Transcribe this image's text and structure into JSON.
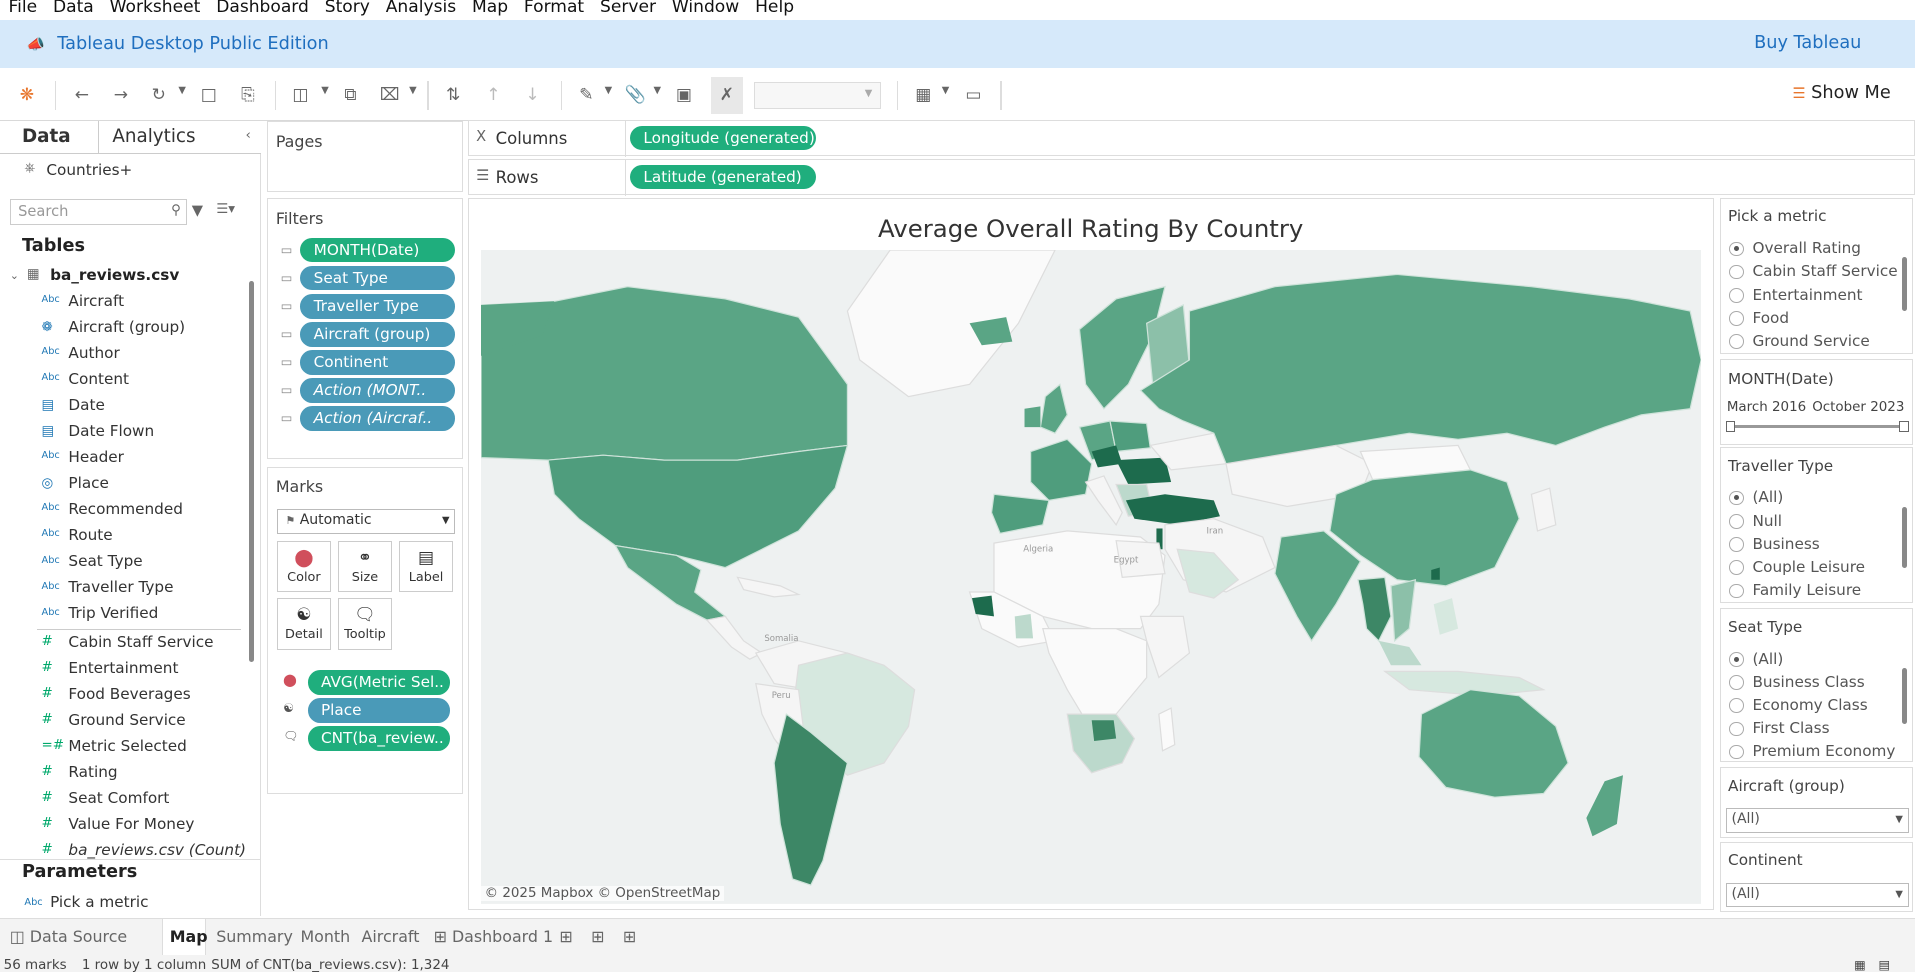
{
  "menu": [
    "File",
    "Data",
    "Worksheet",
    "Dashboard",
    "Story",
    "Analysis",
    "Map",
    "Format",
    "Server",
    "Window",
    "Help"
  ],
  "banner": {
    "title": "Tableau Desktop Public Edition",
    "buy": "Buy Tableau"
  },
  "toolbar": {
    "show_me": "Show Me"
  },
  "left_tabs": {
    "data": "Data",
    "analytics": "Analytics"
  },
  "data_source": "Countries+",
  "search_placeholder": "Search",
  "tables_heading": "Tables",
  "table_name": "ba_reviews.csv",
  "dimensions": [
    {
      "type": "Abc",
      "name": "Aircraft"
    },
    {
      "type": "group",
      "name": "Aircraft (group)"
    },
    {
      "type": "Abc",
      "name": "Author"
    },
    {
      "type": "Abc",
      "name": "Content"
    },
    {
      "type": "date",
      "name": "Date"
    },
    {
      "type": "date",
      "name": "Date Flown"
    },
    {
      "type": "Abc",
      "name": "Header"
    },
    {
      "type": "geo",
      "name": "Place"
    },
    {
      "type": "Abc",
      "name": "Recommended"
    },
    {
      "type": "Abc",
      "name": "Route"
    },
    {
      "type": "Abc",
      "name": "Seat Type"
    },
    {
      "type": "Abc",
      "name": "Traveller Type"
    },
    {
      "type": "Abc",
      "name": "Trip Verified"
    }
  ],
  "measures": [
    {
      "type": "#",
      "name": "Cabin Staff Service"
    },
    {
      "type": "#",
      "name": "Entertainment"
    },
    {
      "type": "#",
      "name": "Food Beverages"
    },
    {
      "type": "#",
      "name": "Ground Service"
    },
    {
      "type": "=#",
      "name": "Metric Selected"
    },
    {
      "type": "#",
      "name": "Rating"
    },
    {
      "type": "#",
      "name": "Seat Comfort"
    },
    {
      "type": "#",
      "name": "Value For Money"
    },
    {
      "type": "#",
      "name": "ba_reviews.csv (Count)"
    }
  ],
  "parameters_heading": "Parameters",
  "parameter": "Pick a metric",
  "pages_label": "Pages",
  "filters_label": "Filters",
  "filters": [
    {
      "label": "MONTH(Date)",
      "style": "green"
    },
    {
      "label": "Seat Type",
      "style": "blue"
    },
    {
      "label": "Traveller Type",
      "style": "blue"
    },
    {
      "label": "Aircraft (group)",
      "style": "blue"
    },
    {
      "label": "Continent",
      "style": "blue"
    },
    {
      "label": "Action (MONT..",
      "style": "it"
    },
    {
      "label": "Action (Aircraf..",
      "style": "it"
    }
  ],
  "marks": {
    "label": "Marks",
    "type": "Automatic",
    "buttons": [
      "Color",
      "Size",
      "Label",
      "Detail",
      "Tooltip"
    ],
    "pills": [
      "AVG(Metric Sel..",
      "Place",
      "CNT(ba_review.."
    ]
  },
  "shelves": {
    "columns_label": "Columns",
    "rows_label": "Rows",
    "columns_pill": "Longitude (generated)",
    "rows_pill": "Latitude (generated)"
  },
  "view": {
    "title": "Average Overall Rating By Country",
    "copyright": "© 2025 Mapbox © OpenStreetMap",
    "map_labels": [
      "Iran",
      "Egypt",
      "Algeria",
      "Somalia",
      "Peru"
    ]
  },
  "metric_card": {
    "title": "Pick a metric",
    "options": [
      "Overall Rating",
      "Cabin Staff Service",
      "Entertainment",
      "Food",
      "Ground Service"
    ],
    "selected": 0
  },
  "month_card": {
    "title": "MONTH(Date)",
    "from": "March 2016",
    "to": "October 2023"
  },
  "traveller_card": {
    "title": "Traveller Type",
    "options": [
      "(All)",
      "Null",
      "Business",
      "Couple Leisure",
      "Family Leisure"
    ],
    "selected": 0
  },
  "seat_card": {
    "title": "Seat Type",
    "options": [
      "(All)",
      "Business Class",
      "Economy Class",
      "First Class",
      "Premium Economy"
    ],
    "selected": 0
  },
  "aircraft_card": {
    "title": "Aircraft (group)",
    "value": "(All)"
  },
  "continent_card": {
    "title": "Continent",
    "value": "(All)"
  },
  "sheet_tabs": {
    "data_source": "Data Source",
    "sheets": [
      "Map",
      "Summary",
      "Month",
      "Aircraft"
    ],
    "dashboard": "Dashboard 1"
  },
  "status": {
    "marks": "56 marks",
    "rows": "1 row by 1 column",
    "sum": "SUM of CNT(ba_reviews.csv): 1,324"
  },
  "colors": {
    "accent_green": "#1fae7d",
    "pill_blue": "#4a9ab8",
    "banner": "#d6e9fa",
    "map_dark": "#1d6b4d",
    "map_mid": "#5aa585",
    "map_light": "#bcd9cc"
  }
}
